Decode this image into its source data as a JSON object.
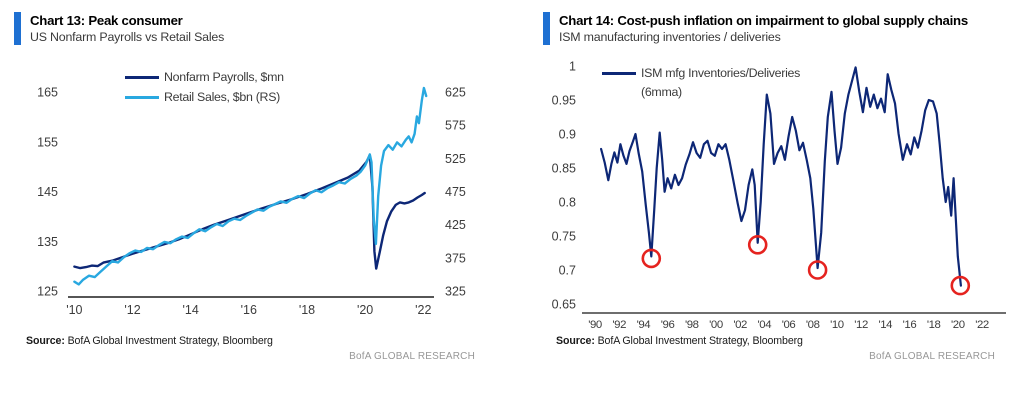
{
  "source": {
    "label": "Source:",
    "text": "BofA Global Investment Strategy, Bloomberg"
  },
  "watermark": "BofA GLOBAL RESEARCH",
  "colors": {
    "accent_blue": "#1e70d2",
    "navy": "#0d2776",
    "light_blue": "#29a8e0",
    "circle_red": "#e5231f",
    "axis_line": "#3e3e3e",
    "axis_text": "#3c3c3c",
    "watermark_gray": "#979797"
  },
  "chart_data": [
    {
      "type": "line",
      "title": "Chart 13: Peak consumer",
      "subtitle": "US Nonfarm Payrolls vs Retail Sales",
      "grid": false,
      "legend_position": "top-left-inside",
      "xlim": [
        2009.85,
        2022.3
      ],
      "x_tick_years": [
        2010,
        2012,
        2014,
        2016,
        2018,
        2020,
        2022
      ],
      "x_ticks": [
        "'10",
        "'12",
        "'14",
        "'16",
        "'18",
        "'20",
        "'22"
      ],
      "y_left": {
        "ticks": [
          165,
          155,
          145,
          135,
          125
        ],
        "lim": [
          124.5,
          167
        ]
      },
      "y_right": {
        "ticks": [
          625,
          575,
          525,
          475,
          425,
          375,
          325
        ],
        "lim": [
          321,
          640
        ]
      },
      "series": [
        {
          "name": "Nonfarm Payrolls, $mn",
          "axis": "left",
          "color": "#0d2776",
          "points": [
            [
              2010.0,
              129.9
            ],
            [
              2010.2,
              129.6
            ],
            [
              2010.4,
              129.8
            ],
            [
              2010.6,
              130.1
            ],
            [
              2010.8,
              130.0
            ],
            [
              2011.0,
              130.7
            ],
            [
              2011.3,
              131.1
            ],
            [
              2011.6,
              131.7
            ],
            [
              2012.0,
              132.5
            ],
            [
              2012.4,
              133.2
            ],
            [
              2012.8,
              133.9
            ],
            [
              2013.2,
              134.6
            ],
            [
              2013.6,
              135.4
            ],
            [
              2014.0,
              136.4
            ],
            [
              2014.4,
              137.4
            ],
            [
              2014.8,
              138.3
            ],
            [
              2015.2,
              139.1
            ],
            [
              2015.6,
              139.9
            ],
            [
              2016.0,
              140.7
            ],
            [
              2016.4,
              141.5
            ],
            [
              2017.0,
              142.6
            ],
            [
              2017.5,
              143.5
            ],
            [
              2018.0,
              144.5
            ],
            [
              2018.5,
              145.6
            ],
            [
              2019.0,
              146.8
            ],
            [
              2019.4,
              147.8
            ],
            [
              2019.8,
              149.2
            ],
            [
              2020.05,
              151.0
            ],
            [
              2020.16,
              152.3
            ],
            [
              2020.25,
              146.0
            ],
            [
              2020.32,
              133.0
            ],
            [
              2020.38,
              129.5
            ],
            [
              2020.5,
              132.8
            ],
            [
              2020.62,
              136.2
            ],
            [
              2020.75,
              139.0
            ],
            [
              2020.9,
              141.0
            ],
            [
              2021.05,
              142.3
            ],
            [
              2021.2,
              142.8
            ],
            [
              2021.35,
              142.6
            ],
            [
              2021.5,
              142.8
            ],
            [
              2021.65,
              143.2
            ],
            [
              2021.8,
              143.8
            ],
            [
              2021.95,
              144.3
            ],
            [
              2022.05,
              144.7
            ]
          ]
        },
        {
          "name": "Retail Sales, $bn (RS)",
          "axis": "right",
          "color": "#29a8e0",
          "points": [
            [
              2010.0,
              339
            ],
            [
              2010.15,
              335
            ],
            [
              2010.3,
              342
            ],
            [
              2010.5,
              348
            ],
            [
              2010.7,
              346
            ],
            [
              2010.9,
              354
            ],
            [
              2011.1,
              362
            ],
            [
              2011.3,
              370
            ],
            [
              2011.5,
              368
            ],
            [
              2011.7,
              376
            ],
            [
              2011.9,
              382
            ],
            [
              2012.1,
              386
            ],
            [
              2012.3,
              384
            ],
            [
              2012.5,
              390
            ],
            [
              2012.7,
              388
            ],
            [
              2012.9,
              394
            ],
            [
              2013.1,
              399
            ],
            [
              2013.3,
              397
            ],
            [
              2013.5,
              403
            ],
            [
              2013.7,
              407
            ],
            [
              2013.9,
              405
            ],
            [
              2014.1,
              412
            ],
            [
              2014.3,
              418
            ],
            [
              2014.5,
              415
            ],
            [
              2014.7,
              421
            ],
            [
              2014.9,
              426
            ],
            [
              2015.1,
              423
            ],
            [
              2015.3,
              430
            ],
            [
              2015.5,
              434
            ],
            [
              2015.7,
              432
            ],
            [
              2015.9,
              438
            ],
            [
              2016.1,
              443
            ],
            [
              2016.3,
              448
            ],
            [
              2016.5,
              446
            ],
            [
              2016.7,
              452
            ],
            [
              2016.9,
              456
            ],
            [
              2017.1,
              460
            ],
            [
              2017.3,
              458
            ],
            [
              2017.5,
              464
            ],
            [
              2017.7,
              468
            ],
            [
              2017.9,
              465
            ],
            [
              2018.1,
              472
            ],
            [
              2018.3,
              477
            ],
            [
              2018.5,
              474
            ],
            [
              2018.7,
              480
            ],
            [
              2018.9,
              484
            ],
            [
              2019.1,
              489
            ],
            [
              2019.3,
              487
            ],
            [
              2019.5,
              494
            ],
            [
              2019.7,
              499
            ],
            [
              2019.85,
              505
            ],
            [
              2020.0,
              514
            ],
            [
              2020.1,
              524
            ],
            [
              2020.16,
              531
            ],
            [
              2020.22,
              519
            ],
            [
              2020.3,
              432
            ],
            [
              2020.37,
              396
            ],
            [
              2020.45,
              468
            ],
            [
              2020.55,
              514
            ],
            [
              2020.65,
              536
            ],
            [
              2020.8,
              545
            ],
            [
              2020.95,
              538
            ],
            [
              2021.1,
              549
            ],
            [
              2021.25,
              543
            ],
            [
              2021.4,
              553
            ],
            [
              2021.5,
              558
            ],
            [
              2021.6,
              549
            ],
            [
              2021.7,
              562
            ],
            [
              2021.78,
              588
            ],
            [
              2021.85,
              578
            ],
            [
              2021.95,
              612
            ],
            [
              2022.02,
              631
            ],
            [
              2022.1,
              619
            ]
          ]
        }
      ]
    },
    {
      "type": "line",
      "title": "Chart 14: Cost-push inflation on impairment to global supply chains",
      "subtitle": "ISM manufacturing inventories / deliveries",
      "grid": false,
      "legend_position": "top-left-inside",
      "xlim": [
        1989.17,
        2023.9
      ],
      "x_tick_years": [
        1990,
        1992,
        1994,
        1996,
        1998,
        2000,
        2002,
        2004,
        2006,
        2008,
        2010,
        2012,
        2014,
        2016,
        2018,
        2020,
        2022
      ],
      "x_ticks": [
        "'90",
        "'92",
        "'94",
        "'96",
        "'98",
        "'00",
        "'02",
        "'04",
        "'06",
        "'08",
        "'10",
        "'12",
        "'14",
        "'16",
        "'18",
        "'20",
        "'22"
      ],
      "y_left": {
        "ticks": [
          [
            1,
            "1"
          ],
          [
            0.95,
            "0.95"
          ],
          [
            0.9,
            "0.9"
          ],
          [
            0.85,
            "0.85"
          ],
          [
            0.8,
            "0.8"
          ],
          [
            0.75,
            "0.75"
          ],
          [
            0.7,
            "0.7"
          ],
          [
            0.65,
            "0.65"
          ]
        ],
        "lim": [
          0.637,
          1.01
        ]
      },
      "circle_color": "#e5231f",
      "trough_circles": [
        [
          1994.65,
          0.72
        ],
        [
          2003.45,
          0.74
        ],
        [
          2008.4,
          0.703
        ],
        [
          2020.2,
          0.68
        ]
      ],
      "series": [
        {
          "name": "ISM mfg Inventories/Deliveries",
          "name2": "(6mma)",
          "axis": "left",
          "color": "#0d2776",
          "points": [
            [
              1990.5,
              0.878
            ],
            [
              1990.8,
              0.858
            ],
            [
              1991.1,
              0.832
            ],
            [
              1991.35,
              0.856
            ],
            [
              1991.6,
              0.873
            ],
            [
              1991.85,
              0.858
            ],
            [
              1992.1,
              0.885
            ],
            [
              1992.35,
              0.868
            ],
            [
              1992.6,
              0.856
            ],
            [
              1992.85,
              0.875
            ],
            [
              1993.1,
              0.887
            ],
            [
              1993.35,
              0.9
            ],
            [
              1993.6,
              0.872
            ],
            [
              1993.9,
              0.845
            ],
            [
              1994.2,
              0.795
            ],
            [
              1994.45,
              0.755
            ],
            [
              1994.65,
              0.72
            ],
            [
              1994.9,
              0.79
            ],
            [
              1995.1,
              0.85
            ],
            [
              1995.35,
              0.902
            ],
            [
              1995.55,
              0.862
            ],
            [
              1995.75,
              0.815
            ],
            [
              1996.0,
              0.835
            ],
            [
              1996.3,
              0.82
            ],
            [
              1996.6,
              0.84
            ],
            [
              1996.9,
              0.825
            ],
            [
              1997.2,
              0.835
            ],
            [
              1997.5,
              0.855
            ],
            [
              1997.8,
              0.87
            ],
            [
              1998.1,
              0.888
            ],
            [
              1998.4,
              0.872
            ],
            [
              1998.7,
              0.865
            ],
            [
              1999.0,
              0.885
            ],
            [
              1999.3,
              0.89
            ],
            [
              1999.6,
              0.872
            ],
            [
              1999.9,
              0.868
            ],
            [
              2000.2,
              0.885
            ],
            [
              2000.5,
              0.878
            ],
            [
              2000.8,
              0.885
            ],
            [
              2001.1,
              0.862
            ],
            [
              2001.4,
              0.835
            ],
            [
              2001.8,
              0.798
            ],
            [
              2002.1,
              0.772
            ],
            [
              2002.4,
              0.788
            ],
            [
              2002.7,
              0.825
            ],
            [
              2003.0,
              0.848
            ],
            [
              2003.2,
              0.825
            ],
            [
              2003.45,
              0.74
            ],
            [
              2003.7,
              0.8
            ],
            [
              2003.95,
              0.885
            ],
            [
              2004.2,
              0.958
            ],
            [
              2004.5,
              0.93
            ],
            [
              2004.8,
              0.856
            ],
            [
              2005.1,
              0.872
            ],
            [
              2005.4,
              0.882
            ],
            [
              2005.7,
              0.862
            ],
            [
              2006.0,
              0.896
            ],
            [
              2006.3,
              0.925
            ],
            [
              2006.6,
              0.905
            ],
            [
              2006.9,
              0.876
            ],
            [
              2007.2,
              0.887
            ],
            [
              2007.5,
              0.862
            ],
            [
              2007.8,
              0.835
            ],
            [
              2008.05,
              0.79
            ],
            [
              2008.4,
              0.703
            ],
            [
              2008.7,
              0.755
            ],
            [
              2009.0,
              0.86
            ],
            [
              2009.25,
              0.925
            ],
            [
              2009.55,
              0.962
            ],
            [
              2009.8,
              0.905
            ],
            [
              2010.05,
              0.856
            ],
            [
              2010.35,
              0.88
            ],
            [
              2010.65,
              0.93
            ],
            [
              2010.95,
              0.958
            ],
            [
              2011.25,
              0.978
            ],
            [
              2011.55,
              0.998
            ],
            [
              2011.85,
              0.962
            ],
            [
              2012.15,
              0.932
            ],
            [
              2012.45,
              0.968
            ],
            [
              2012.75,
              0.94
            ],
            [
              2013.05,
              0.958
            ],
            [
              2013.35,
              0.938
            ],
            [
              2013.65,
              0.952
            ],
            [
              2013.95,
              0.932
            ],
            [
              2014.2,
              0.988
            ],
            [
              2014.5,
              0.965
            ],
            [
              2014.8,
              0.945
            ],
            [
              2015.1,
              0.9
            ],
            [
              2015.45,
              0.862
            ],
            [
              2015.8,
              0.885
            ],
            [
              2016.1,
              0.87
            ],
            [
              2016.4,
              0.895
            ],
            [
              2016.7,
              0.88
            ],
            [
              2017.0,
              0.905
            ],
            [
              2017.3,
              0.935
            ],
            [
              2017.6,
              0.95
            ],
            [
              2017.95,
              0.948
            ],
            [
              2018.25,
              0.93
            ],
            [
              2018.5,
              0.885
            ],
            [
              2018.75,
              0.835
            ],
            [
              2019.0,
              0.8
            ],
            [
              2019.2,
              0.822
            ],
            [
              2019.45,
              0.78
            ],
            [
              2019.65,
              0.835
            ],
            [
              2019.85,
              0.77
            ],
            [
              2020.0,
              0.72
            ],
            [
              2020.25,
              0.677
            ]
          ]
        }
      ]
    }
  ]
}
